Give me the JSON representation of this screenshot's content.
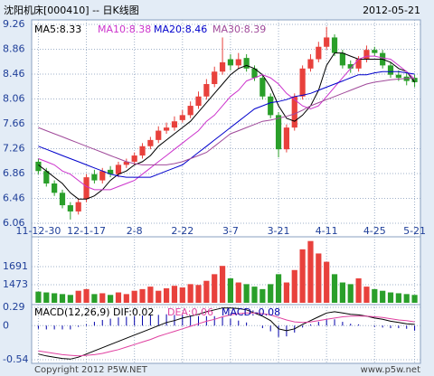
{
  "chart_data": [
    {
      "type": "candlestick",
      "title": "沈阳机床[000410] -- 日K线图",
      "subtitle": "2012-05-21",
      "categories": [
        "11-12-30",
        null,
        null,
        null,
        null,
        null,
        "12-1-17",
        null,
        null,
        null,
        null,
        null,
        "2-8",
        null,
        null,
        null,
        null,
        null,
        "2-22",
        null,
        null,
        null,
        null,
        null,
        "3-7",
        null,
        null,
        null,
        null,
        null,
        "3-21",
        null,
        null,
        null,
        null,
        null,
        "4-11",
        null,
        null,
        null,
        null,
        null,
        "4-25",
        null,
        null,
        null,
        null,
        "5-21"
      ],
      "open": [
        7.05,
        6.9,
        6.7,
        6.55,
        6.35,
        6.25,
        6.45,
        6.85,
        6.75,
        6.92,
        6.85,
        7.0,
        7.05,
        7.15,
        7.3,
        7.4,
        7.55,
        7.6,
        7.72,
        7.8,
        7.95,
        8.1,
        8.3,
        8.5,
        8.7,
        8.6,
        8.72,
        8.55,
        8.4,
        8.1,
        7.8,
        7.25,
        7.6,
        8.1,
        8.55,
        8.7,
        8.9,
        9.05,
        8.8,
        8.62,
        8.55,
        8.7,
        8.85,
        8.8,
        8.6,
        8.45,
        8.42,
        8.4
      ],
      "high": [
        7.1,
        6.95,
        6.75,
        6.6,
        6.4,
        6.45,
        6.85,
        6.92,
        6.95,
        6.98,
        7.05,
        7.1,
        7.2,
        7.35,
        7.45,
        7.62,
        7.68,
        7.78,
        7.88,
        8.02,
        8.18,
        8.38,
        8.58,
        9.05,
        8.78,
        8.8,
        8.78,
        8.6,
        8.45,
        8.15,
        7.85,
        7.65,
        8.15,
        8.6,
        8.78,
        8.98,
        9.22,
        9.1,
        8.85,
        8.68,
        8.75,
        8.92,
        8.9,
        8.85,
        8.65,
        8.52,
        8.48,
        8.45
      ],
      "low": [
        6.85,
        6.65,
        6.5,
        6.3,
        6.12,
        6.2,
        6.4,
        6.7,
        6.7,
        6.8,
        6.8,
        6.95,
        7.0,
        7.1,
        7.25,
        7.35,
        7.5,
        7.55,
        7.68,
        7.75,
        7.9,
        8.05,
        8.25,
        8.45,
        8.52,
        8.55,
        8.5,
        8.35,
        8.05,
        7.75,
        7.12,
        7.2,
        7.55,
        8.05,
        8.5,
        8.65,
        8.85,
        8.75,
        8.55,
        8.48,
        8.5,
        8.65,
        8.75,
        8.55,
        8.4,
        8.35,
        8.28,
        8.25
      ],
      "close": [
        6.9,
        6.7,
        6.55,
        6.35,
        6.25,
        6.4,
        6.8,
        6.75,
        6.9,
        6.85,
        7.0,
        7.05,
        7.15,
        7.3,
        7.4,
        7.55,
        7.6,
        7.7,
        7.8,
        7.95,
        8.1,
        8.3,
        8.5,
        8.65,
        8.6,
        8.7,
        8.55,
        8.4,
        8.1,
        7.8,
        7.25,
        7.6,
        8.1,
        8.55,
        8.7,
        8.9,
        9.05,
        8.8,
        8.6,
        8.55,
        8.7,
        8.85,
        8.8,
        8.6,
        8.45,
        8.4,
        8.35,
        8.33
      ],
      "up_color": "#e8413c",
      "down_color": "#2a9f2a",
      "series": [
        {
          "name": "MA5:8.33",
          "color": "#000000",
          "values": [
            7.0,
            6.9,
            6.8,
            6.7,
            6.55,
            6.45,
            6.45,
            6.5,
            6.6,
            6.75,
            6.85,
            6.9,
            7.0,
            7.05,
            7.15,
            7.3,
            7.4,
            7.5,
            7.6,
            7.7,
            7.85,
            8.0,
            8.15,
            8.3,
            8.45,
            8.55,
            8.6,
            8.55,
            8.45,
            8.25,
            7.95,
            7.75,
            7.7,
            7.8,
            7.95,
            8.2,
            8.6,
            8.8,
            8.8,
            8.75,
            8.7,
            8.7,
            8.7,
            8.7,
            8.65,
            8.55,
            8.5,
            8.33
          ]
        },
        {
          "name": "MA10:8.38",
          "color": "#cc33cc",
          "values": [
            7.1,
            7.05,
            7.0,
            6.9,
            6.85,
            6.75,
            6.65,
            6.6,
            6.6,
            6.6,
            6.65,
            6.7,
            6.75,
            6.85,
            6.95,
            7.05,
            7.15,
            7.25,
            7.35,
            7.45,
            7.55,
            7.7,
            7.8,
            7.95,
            8.1,
            8.2,
            8.35,
            8.4,
            8.45,
            8.4,
            8.3,
            8.15,
            8.05,
            7.95,
            7.9,
            7.95,
            8.1,
            8.25,
            8.4,
            8.55,
            8.7,
            8.75,
            8.75,
            8.72,
            8.7,
            8.6,
            8.5,
            8.38
          ]
        },
        {
          "name": "MA20:8.46",
          "color": "#0000cc",
          "values": [
            7.3,
            7.25,
            7.2,
            7.15,
            7.1,
            7.05,
            7.0,
            6.95,
            6.9,
            6.85,
            6.82,
            6.8,
            6.8,
            6.8,
            6.8,
            6.85,
            6.9,
            6.95,
            7.0,
            7.1,
            7.2,
            7.3,
            7.4,
            7.5,
            7.6,
            7.7,
            7.8,
            7.9,
            7.95,
            8.0,
            8.02,
            8.05,
            8.1,
            8.12,
            8.15,
            8.2,
            8.25,
            8.3,
            8.35,
            8.4,
            8.45,
            8.45,
            8.48,
            8.5,
            8.5,
            8.5,
            8.48,
            8.46
          ]
        },
        {
          "name": "MA30:8.39",
          "color": "#a04a9a",
          "values": [
            7.6,
            7.55,
            7.5,
            7.45,
            7.4,
            7.35,
            7.3,
            7.25,
            7.2,
            7.15,
            7.1,
            7.05,
            7.02,
            7.0,
            7.0,
            7.0,
            7.0,
            7.02,
            7.05,
            7.1,
            7.15,
            7.2,
            7.3,
            7.4,
            7.5,
            7.55,
            7.6,
            7.65,
            7.7,
            7.72,
            7.75,
            7.78,
            7.82,
            7.88,
            7.95,
            8.0,
            8.05,
            8.1,
            8.15,
            8.2,
            8.25,
            8.3,
            8.33,
            8.35,
            8.37,
            8.38,
            8.39,
            8.39
          ]
        }
      ],
      "ylim": [
        6.06,
        9.26
      ],
      "yticks": [
        6.06,
        6.46,
        6.86,
        7.26,
        7.66,
        8.06,
        8.46,
        8.86,
        9.26
      ],
      "grid": true
    },
    {
      "type": "volume",
      "values": [
        1390,
        1380,
        1370,
        1360,
        1350,
        1400,
        1420,
        1360,
        1370,
        1350,
        1380,
        1360,
        1400,
        1420,
        1450,
        1400,
        1430,
        1460,
        1440,
        1480,
        1470,
        1520,
        1600,
        1700,
        1550,
        1500,
        1480,
        1450,
        1420,
        1480,
        1600,
        1500,
        1650,
        1900,
        2000,
        1850,
        1750,
        1600,
        1500,
        1480,
        1550,
        1450,
        1420,
        1400,
        1380,
        1370,
        1360,
        1350
      ],
      "ylim": [
        1255,
        2051
      ],
      "yticks": [
        1473,
        1691
      ],
      "grid": true
    },
    {
      "type": "macd",
      "title": "MACD(12,26,9)",
      "series": [
        {
          "name": "DIF:0.02",
          "color": "#000000",
          "values": [
            -0.45,
            -0.48,
            -0.5,
            -0.52,
            -0.53,
            -0.5,
            -0.45,
            -0.4,
            -0.35,
            -0.3,
            -0.25,
            -0.2,
            -0.15,
            -0.1,
            -0.05,
            0.0,
            0.05,
            0.08,
            0.12,
            0.15,
            0.18,
            0.22,
            0.25,
            0.28,
            0.28,
            0.27,
            0.25,
            0.2,
            0.15,
            0.08,
            -0.05,
            -0.08,
            -0.05,
            0.02,
            0.08,
            0.14,
            0.2,
            0.22,
            0.2,
            0.18,
            0.17,
            0.15,
            0.12,
            0.1,
            0.07,
            0.05,
            0.03,
            0.02
          ]
        },
        {
          "name": "DEA:0.06",
          "color": "#e040a0",
          "values": [
            -0.4,
            -0.42,
            -0.44,
            -0.46,
            -0.47,
            -0.48,
            -0.47,
            -0.46,
            -0.44,
            -0.41,
            -0.38,
            -0.34,
            -0.3,
            -0.26,
            -0.22,
            -0.17,
            -0.13,
            -0.09,
            -0.05,
            -0.01,
            0.03,
            0.07,
            0.1,
            0.14,
            0.17,
            0.19,
            0.2,
            0.2,
            0.19,
            0.17,
            0.13,
            0.09,
            0.06,
            0.05,
            0.06,
            0.08,
            0.1,
            0.12,
            0.14,
            0.15,
            0.15,
            0.15,
            0.14,
            0.13,
            0.11,
            0.09,
            0.08,
            0.06
          ]
        }
      ],
      "bars": {
        "name": "MACD:-0.08",
        "color": "#0000aa",
        "values": [
          -0.05,
          -0.06,
          -0.06,
          -0.06,
          -0.06,
          -0.02,
          0.02,
          0.06,
          0.09,
          0.11,
          0.13,
          0.14,
          0.15,
          0.16,
          0.17,
          0.17,
          0.18,
          0.17,
          0.17,
          0.16,
          0.15,
          0.15,
          0.15,
          0.14,
          0.11,
          0.08,
          0.05,
          0,
          -0.04,
          -0.09,
          -0.18,
          -0.17,
          -0.11,
          -0.03,
          0.02,
          0.06,
          0.1,
          0.1,
          0.06,
          0.03,
          0.02,
          0,
          -0.02,
          -0.03,
          -0.04,
          -0.04,
          -0.05,
          -0.08
        ]
      },
      "ylim": [
        -0.54,
        0.29
      ],
      "yticks": [
        -0.54,
        0,
        0.29
      ],
      "grid": true
    }
  ],
  "footer": {
    "copyright": "Copyright 2012 P5W.NET",
    "site": "www.p5w.net"
  }
}
